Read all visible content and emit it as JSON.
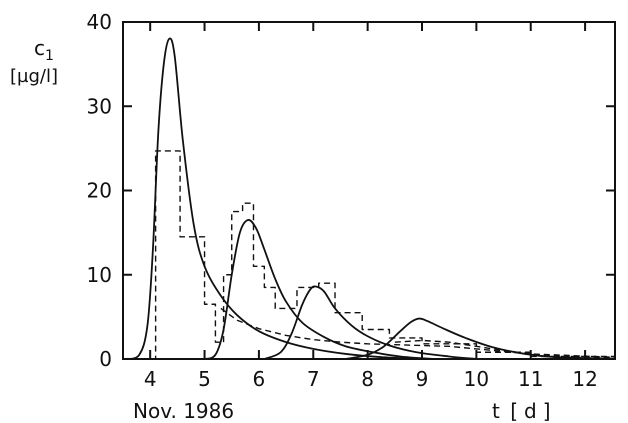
{
  "chart_data": {
    "type": "line",
    "ylabel_symbol": "c",
    "ylabel_subscript": "1",
    "ylabel_unit": "[µg/l]",
    "xlabel_date": "Nov. 1986",
    "xlabel_var": "t",
    "xlabel_unit": "[d]",
    "xlim": [
      3.5,
      12.55
    ],
    "ylim": [
      0,
      40
    ],
    "x_ticks": [
      4,
      5,
      6,
      7,
      8,
      9,
      10,
      11,
      12
    ],
    "y_ticks": [
      0,
      10,
      20,
      30,
      40
    ],
    "grid": false,
    "legend": "none",
    "series": [
      {
        "style": "solid",
        "x": [
          3.55,
          3.8,
          3.95,
          4.05,
          4.15,
          4.25,
          4.35,
          4.45,
          4.6,
          4.8,
          5.0,
          5.3,
          5.6,
          6.0,
          6.5,
          7.0,
          7.6,
          8.3,
          9.0
        ],
        "y": [
          0,
          0.5,
          4,
          13,
          27,
          35,
          38,
          36,
          26,
          16,
          11,
          7.5,
          5.2,
          3.3,
          2.0,
          1.2,
          0.6,
          0.2,
          0
        ]
      },
      {
        "style": "solid",
        "x": [
          5.0,
          5.2,
          5.35,
          5.5,
          5.65,
          5.8,
          5.95,
          6.1,
          6.3,
          6.5,
          6.8,
          7.2,
          7.6,
          8.1,
          8.6,
          9.2
        ],
        "y": [
          0,
          0.5,
          3.5,
          10,
          15,
          16.5,
          15.5,
          13,
          9.5,
          6.8,
          4.3,
          2.6,
          1.5,
          0.8,
          0.3,
          0
        ]
      },
      {
        "style": "solid",
        "x": [
          6.1,
          6.4,
          6.6,
          6.8,
          6.95,
          7.05,
          7.2,
          7.4,
          7.7,
          8.0,
          8.4,
          8.9,
          9.5,
          10.0
        ],
        "y": [
          0,
          0.8,
          3,
          6.5,
          8.3,
          8.6,
          8,
          6,
          4,
          2.7,
          1.6,
          0.8,
          0.3,
          0
        ]
      },
      {
        "style": "solid",
        "x": [
          7.6,
          8.0,
          8.3,
          8.6,
          8.8,
          8.95,
          9.1,
          9.4,
          9.8,
          10.3,
          10.9,
          11.5,
          12.55
        ],
        "y": [
          0,
          0.5,
          1.5,
          3.3,
          4.4,
          4.8,
          4.5,
          3.6,
          2.5,
          1.4,
          0.6,
          0.2,
          0.05
        ]
      },
      {
        "style": "dashed-steps",
        "x": [
          3.5,
          4.0,
          4.0,
          4.1,
          4.1,
          4.55,
          4.55,
          5.0,
          5.0,
          5.2,
          5.2,
          5.35,
          5.35,
          5.5,
          5.5,
          5.7,
          5.7,
          5.9,
          5.9,
          6.1,
          6.1,
          6.3,
          6.3,
          6.7,
          6.7,
          7.1,
          7.1,
          7.4,
          7.4,
          7.9,
          7.9,
          8.4,
          8.4,
          9.0,
          9.0,
          10.0,
          10.0,
          11.0,
          11.0,
          12.55
        ],
        "y": [
          0,
          0,
          0,
          0,
          24.7,
          24.7,
          14.5,
          14.5,
          6.5,
          6.5,
          2,
          2,
          10,
          10,
          17.5,
          17.5,
          18.5,
          18.5,
          11,
          11,
          8.5,
          8.5,
          6,
          6,
          8.5,
          8.5,
          9,
          9,
          5.5,
          5.5,
          3.5,
          3.5,
          2.5,
          2.5,
          1.8,
          1.8,
          0.8,
          0.8,
          0.3,
          0.3
        ]
      },
      {
        "style": "dashed",
        "x": [
          5.3,
          5.6,
          6.0,
          6.5,
          7.0,
          7.5,
          8.0,
          8.5,
          9.0,
          9.5,
          10.0,
          11.0,
          12.55
        ],
        "y": [
          6,
          4.6,
          3.6,
          2.8,
          2.3,
          2.0,
          1.8,
          1.7,
          1.6,
          1.5,
          1.2,
          0.6,
          0.2
        ]
      },
      {
        "style": "dashed",
        "x": [
          8.5,
          9.0,
          9.5,
          10.0,
          10.5,
          11.0,
          11.5,
          12.0,
          12.55
        ],
        "y": [
          2.0,
          2.2,
          2.0,
          1.5,
          1.0,
          0.6,
          0.35,
          0.2,
          0.1
        ]
      }
    ]
  }
}
